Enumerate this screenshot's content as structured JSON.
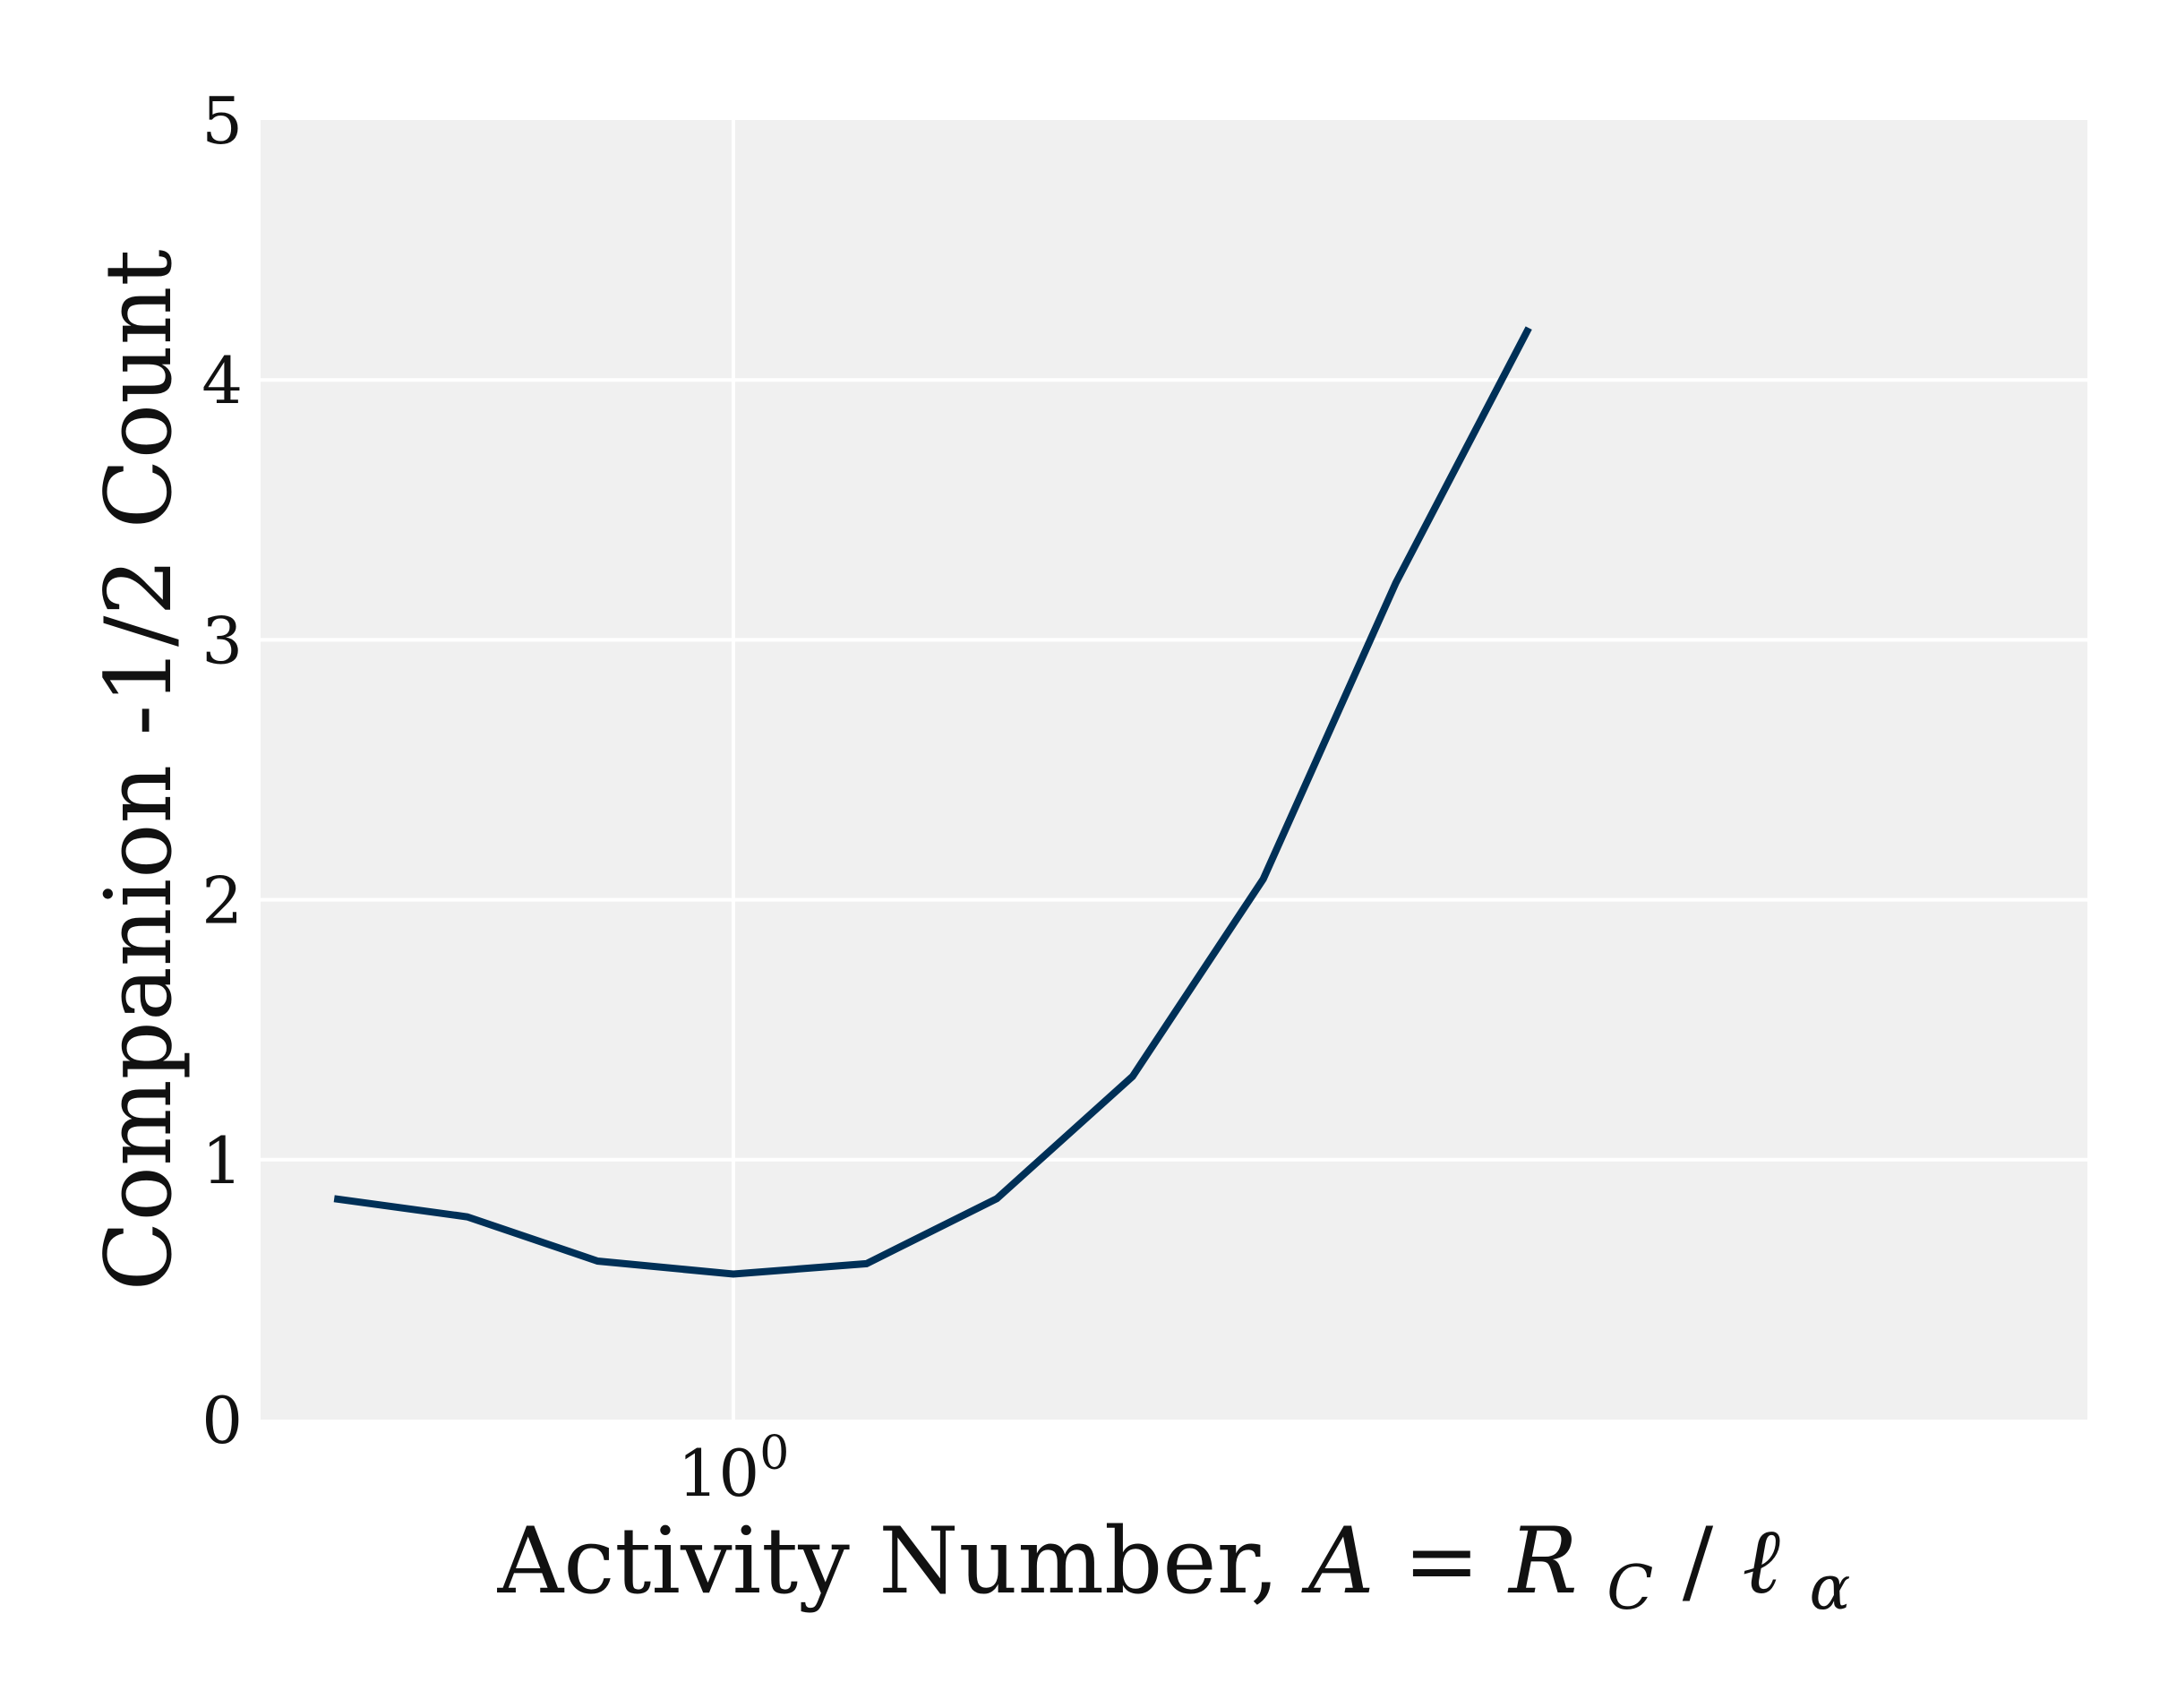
{
  "chart_data": {
    "type": "line",
    "title": "",
    "xlabel": {
      "prefix": "Activity Number, ",
      "lhs": "A",
      "equals": " = ",
      "rhs_main": "R",
      "rhs_sub": "C",
      "slash": "/",
      "ell": "ℓ",
      "ell_sub": "α"
    },
    "ylabel": "Companion -1/2 Count",
    "x_scale": "log",
    "xlim": [
      0.44,
      10.5
    ],
    "ylim": [
      0,
      5
    ],
    "x_ticks": [
      {
        "value": 1,
        "base": "10",
        "exponent": "0"
      }
    ],
    "y_ticks": [
      0,
      1,
      2,
      3,
      4,
      5
    ],
    "y_tick_labels": [
      "0",
      "1",
      "2",
      "3",
      "4",
      "5"
    ],
    "grid": true,
    "background_color": "#f0f0f0",
    "grid_color": "#ffffff",
    "series": [
      {
        "color": "#003057",
        "points": [
          {
            "x": 0.5,
            "y": 0.85
          },
          {
            "x": 0.63,
            "y": 0.78
          },
          {
            "x": 0.79,
            "y": 0.61
          },
          {
            "x": 1.0,
            "y": 0.56
          },
          {
            "x": 1.26,
            "y": 0.6
          },
          {
            "x": 1.58,
            "y": 0.85
          },
          {
            "x": 2.0,
            "y": 1.32
          },
          {
            "x": 2.51,
            "y": 2.08
          },
          {
            "x": 3.16,
            "y": 3.22
          },
          {
            "x": 3.98,
            "y": 4.2
          }
        ]
      }
    ]
  }
}
